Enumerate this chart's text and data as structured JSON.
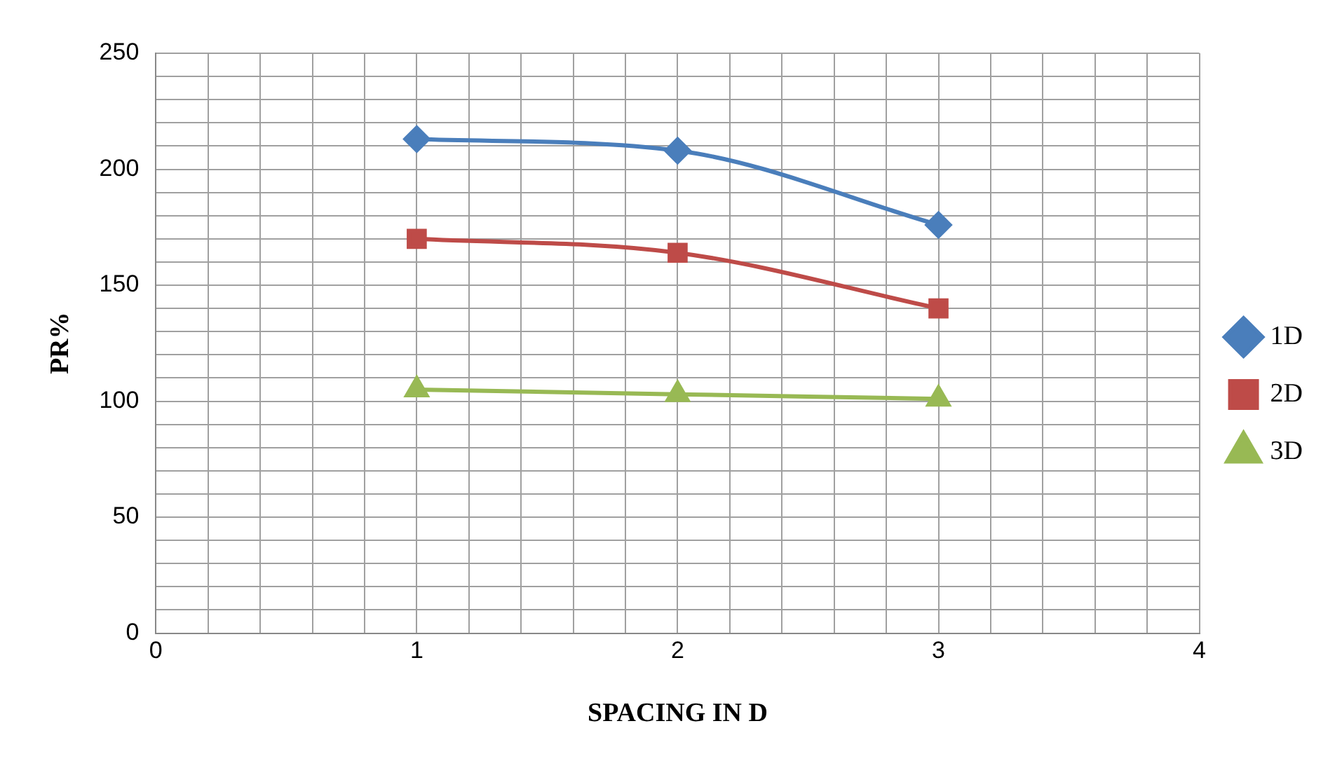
{
  "chart_data": {
    "type": "line",
    "xlabel": "SPACING IN D",
    "ylabel": "PR%",
    "xlim": [
      0,
      4
    ],
    "xticks": [
      0,
      {
        "value": 0.2,
        "label": null
      },
      {
        "value": 0.4,
        "label": null
      },
      {
        "value": 0.6,
        "label": null
      },
      {
        "value": 0.8,
        "label": null
      },
      1,
      {
        "value": 1.2,
        "label": null
      },
      {
        "value": 1.4,
        "label": null
      },
      {
        "value": 1.6,
        "label": null
      },
      {
        "value": 1.8,
        "label": null
      },
      2,
      {
        "value": 2.2,
        "label": null
      },
      {
        "value": 2.4,
        "label": null
      },
      {
        "value": 2.6,
        "label": null
      },
      {
        "value": 2.8,
        "label": null
      },
      3,
      {
        "value": 3.2,
        "label": null
      },
      {
        "value": 3.4,
        "label": null
      },
      {
        "value": 3.6,
        "label": null
      },
      {
        "value": 3.8,
        "label": null
      },
      4
    ],
    "ylim": [
      0,
      250
    ],
    "yticks": [
      0,
      {
        "value": 10,
        "label": null
      },
      {
        "value": 20,
        "label": null
      },
      {
        "value": 30,
        "label": null
      },
      {
        "value": 40,
        "label": null
      },
      50,
      {
        "value": 60,
        "label": null
      },
      {
        "value": 70,
        "label": null
      },
      {
        "value": 80,
        "label": null
      },
      {
        "value": 90,
        "label": null
      },
      100,
      {
        "value": 110,
        "label": null
      },
      {
        "value": 120,
        "label": null
      },
      {
        "value": 130,
        "label": null
      },
      {
        "value": 140,
        "label": null
      },
      150,
      {
        "value": 160,
        "label": null
      },
      {
        "value": 170,
        "label": null
      },
      {
        "value": 180,
        "label": null
      },
      {
        "value": 190,
        "label": null
      },
      200,
      {
        "value": 210,
        "label": null
      },
      {
        "value": 220,
        "label": null
      },
      {
        "value": 230,
        "label": null
      },
      {
        "value": 240,
        "label": null
      },
      250
    ],
    "x": [
      1,
      2,
      3
    ],
    "grid": true,
    "legend": "right",
    "series": [
      {
        "name": "1D",
        "color": "#4a7ebb",
        "marker": "diamond",
        "values": [
          213,
          208,
          176
        ]
      },
      {
        "name": "2D",
        "color": "#be4b48",
        "marker": "square",
        "values": [
          170,
          164,
          140
        ]
      },
      {
        "name": "3D",
        "color": "#98b954",
        "marker": "triangle",
        "values": [
          105,
          103,
          101
        ]
      }
    ]
  }
}
